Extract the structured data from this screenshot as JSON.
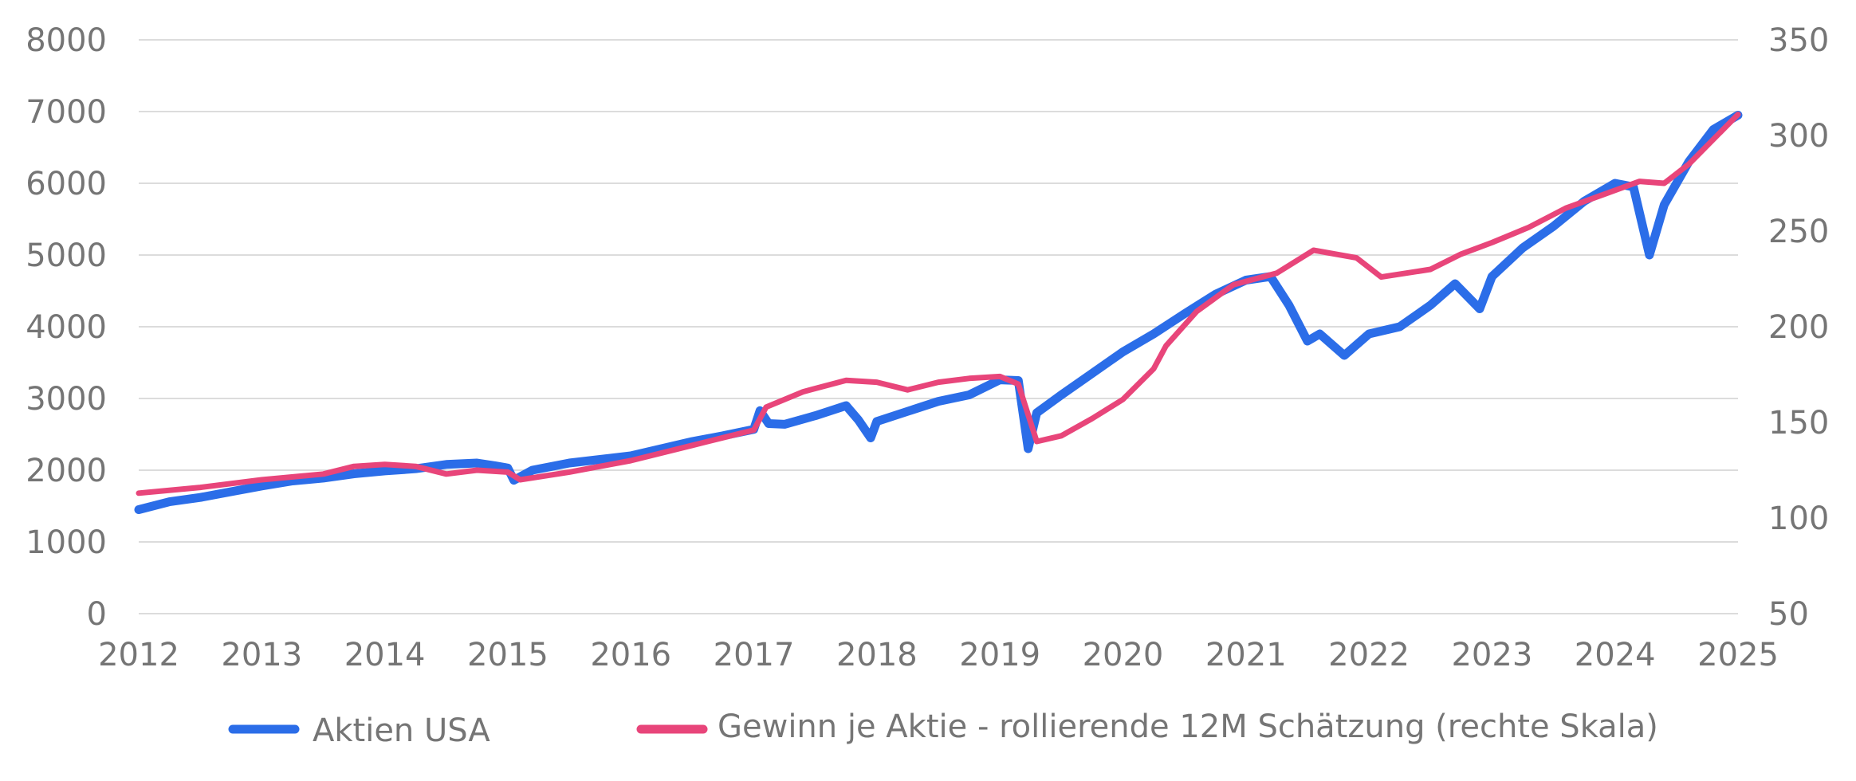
{
  "chart_data": {
    "type": "line",
    "title": "",
    "xlabel": "",
    "ylabel_left": "",
    "ylabel_right": "",
    "x_ticks": [
      "2012",
      "2013",
      "2014",
      "2015",
      "2016",
      "2017",
      "2018",
      "2019",
      "2020",
      "2021",
      "2022",
      "2023",
      "2024",
      "2025"
    ],
    "x_range": [
      2012,
      2025
    ],
    "y_left": {
      "range": [
        0,
        8000
      ],
      "ticks": [
        "0",
        "1000",
        "2000",
        "3000",
        "4000",
        "5000",
        "6000",
        "7000",
        "8000"
      ]
    },
    "y_right": {
      "range": [
        50,
        350
      ],
      "ticks": [
        "50",
        "100",
        "150",
        "200",
        "250",
        "300",
        "350"
      ]
    },
    "grid": true,
    "legend_position": "bottom",
    "series": [
      {
        "name": "Aktien USA",
        "axis": "left",
        "color": "#2B6DE8",
        "points": [
          [
            2012.0,
            1450
          ],
          [
            2012.25,
            1560
          ],
          [
            2012.5,
            1620
          ],
          [
            2012.75,
            1700
          ],
          [
            2013.0,
            1780
          ],
          [
            2013.25,
            1850
          ],
          [
            2013.5,
            1890
          ],
          [
            2013.75,
            1950
          ],
          [
            2014.0,
            1990
          ],
          [
            2014.25,
            2020
          ],
          [
            2014.5,
            2080
          ],
          [
            2014.75,
            2100
          ],
          [
            2014.9,
            2060
          ],
          [
            2015.0,
            2030
          ],
          [
            2015.05,
            1860
          ],
          [
            2015.2,
            2000
          ],
          [
            2015.5,
            2100
          ],
          [
            2015.75,
            2150
          ],
          [
            2016.0,
            2200
          ],
          [
            2016.25,
            2300
          ],
          [
            2016.5,
            2400
          ],
          [
            2016.75,
            2480
          ],
          [
            2017.0,
            2570
          ],
          [
            2017.05,
            2830
          ],
          [
            2017.12,
            2650
          ],
          [
            2017.25,
            2640
          ],
          [
            2017.5,
            2760
          ],
          [
            2017.75,
            2900
          ],
          [
            2017.85,
            2700
          ],
          [
            2017.95,
            2450
          ],
          [
            2018.0,
            2680
          ],
          [
            2018.25,
            2820
          ],
          [
            2018.5,
            2960
          ],
          [
            2018.75,
            3050
          ],
          [
            2019.0,
            3260
          ],
          [
            2019.15,
            3250
          ],
          [
            2019.23,
            2300
          ],
          [
            2019.3,
            2800
          ],
          [
            2019.5,
            3050
          ],
          [
            2019.75,
            3350
          ],
          [
            2020.0,
            3650
          ],
          [
            2020.25,
            3900
          ],
          [
            2020.5,
            4180
          ],
          [
            2020.75,
            4450
          ],
          [
            2021.0,
            4650
          ],
          [
            2021.2,
            4700
          ],
          [
            2021.35,
            4300
          ],
          [
            2021.5,
            3800
          ],
          [
            2021.6,
            3900
          ],
          [
            2021.8,
            3600
          ],
          [
            2022.0,
            3900
          ],
          [
            2022.25,
            4000
          ],
          [
            2022.5,
            4300
          ],
          [
            2022.7,
            4600
          ],
          [
            2022.9,
            4250
          ],
          [
            2023.0,
            4700
          ],
          [
            2023.25,
            5100
          ],
          [
            2023.5,
            5400
          ],
          [
            2023.75,
            5750
          ],
          [
            2024.0,
            6000
          ],
          [
            2024.15,
            5950
          ],
          [
            2024.28,
            5000
          ],
          [
            2024.4,
            5700
          ],
          [
            2024.6,
            6300
          ],
          [
            2024.8,
            6750
          ],
          [
            2025.0,
            6950
          ]
        ]
      },
      {
        "name": "Gewinn je Aktie - rollierende 12M Schätzung (rechte Skala)",
        "axis": "right",
        "color": "#E8457A",
        "points": [
          [
            2012.0,
            113
          ],
          [
            2012.5,
            116
          ],
          [
            2013.0,
            120
          ],
          [
            2013.5,
            123
          ],
          [
            2013.75,
            127
          ],
          [
            2014.0,
            128
          ],
          [
            2014.25,
            127
          ],
          [
            2014.5,
            123
          ],
          [
            2014.75,
            125
          ],
          [
            2015.0,
            124
          ],
          [
            2015.1,
            120
          ],
          [
            2015.5,
            124
          ],
          [
            2015.75,
            127
          ],
          [
            2016.0,
            130
          ],
          [
            2016.5,
            138
          ],
          [
            2016.75,
            142
          ],
          [
            2017.0,
            146
          ],
          [
            2017.1,
            158
          ],
          [
            2017.4,
            166
          ],
          [
            2017.75,
            172
          ],
          [
            2018.0,
            171
          ],
          [
            2018.25,
            167
          ],
          [
            2018.5,
            171
          ],
          [
            2018.75,
            173
          ],
          [
            2019.0,
            174
          ],
          [
            2019.15,
            170
          ],
          [
            2019.3,
            140
          ],
          [
            2019.5,
            143
          ],
          [
            2019.75,
            152
          ],
          [
            2020.0,
            162
          ],
          [
            2020.25,
            178
          ],
          [
            2020.35,
            190
          ],
          [
            2020.6,
            208
          ],
          [
            2020.9,
            222
          ],
          [
            2021.25,
            228
          ],
          [
            2021.55,
            240
          ],
          [
            2021.9,
            236
          ],
          [
            2022.1,
            226
          ],
          [
            2022.5,
            230
          ],
          [
            2022.75,
            238
          ],
          [
            2023.0,
            244
          ],
          [
            2023.3,
            252
          ],
          [
            2023.6,
            262
          ],
          [
            2023.9,
            269
          ],
          [
            2024.2,
            276
          ],
          [
            2024.4,
            275
          ],
          [
            2024.6,
            285
          ],
          [
            2025.0,
            311
          ]
        ]
      }
    ]
  }
}
